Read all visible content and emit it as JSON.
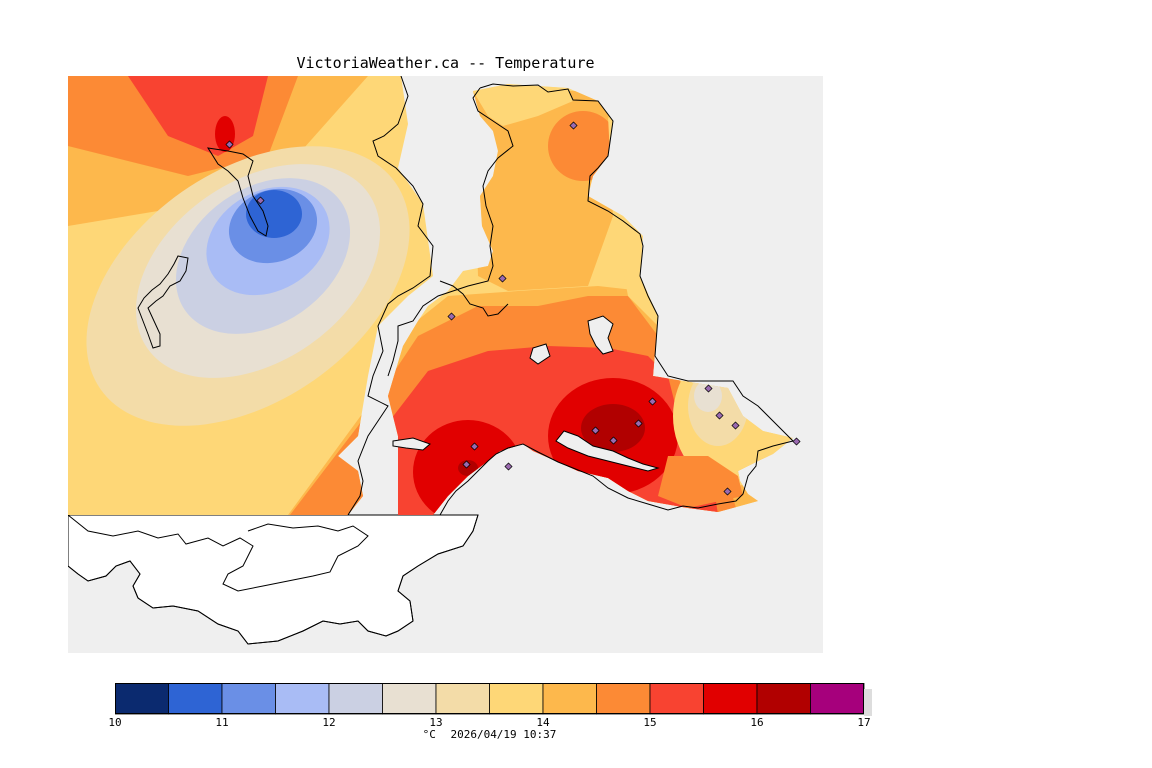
{
  "title": "VictoriaWeather.ca -- Temperature",
  "legend": {
    "ticks": [
      "10",
      "11",
      "12",
      "13",
      "14",
      "15",
      "16",
      "17"
    ],
    "unit": "°C",
    "timestamp": "2026/04/19 10:37",
    "range": [
      10,
      17
    ],
    "bins": [
      {
        "from": 10.0,
        "to": 10.5,
        "color": "#0b2a6f"
      },
      {
        "from": 10.5,
        "to": 11.0,
        "color": "#2e64d4"
      },
      {
        "from": 11.0,
        "to": 11.5,
        "color": "#6a8fe6"
      },
      {
        "from": 11.5,
        "to": 12.0,
        "color": "#a9bcf5"
      },
      {
        "from": 12.0,
        "to": 12.5,
        "color": "#cbd0e3"
      },
      {
        "from": 12.5,
        "to": 13.0,
        "color": "#e8e0d2"
      },
      {
        "from": 13.0,
        "to": 13.5,
        "color": "#f3dca8"
      },
      {
        "from": 13.5,
        "to": 14.0,
        "color": "#fed777"
      },
      {
        "from": 14.0,
        "to": 14.5,
        "color": "#fdb84c"
      },
      {
        "from": 14.5,
        "to": 15.0,
        "color": "#fc8a35"
      },
      {
        "from": 15.0,
        "to": 15.5,
        "color": "#f84331"
      },
      {
        "from": 15.5,
        "to": 16.0,
        "color": "#e10000"
      },
      {
        "from": 16.0,
        "to": 16.5,
        "color": "#b10000"
      },
      {
        "from": 16.5,
        "to": 17.0,
        "color": "#a6007c"
      }
    ]
  },
  "colors": {
    "water": "#efefef",
    "land_no_data": "#ffffff",
    "coast": "#000000",
    "station_marker": "#9a6ab0"
  }
}
